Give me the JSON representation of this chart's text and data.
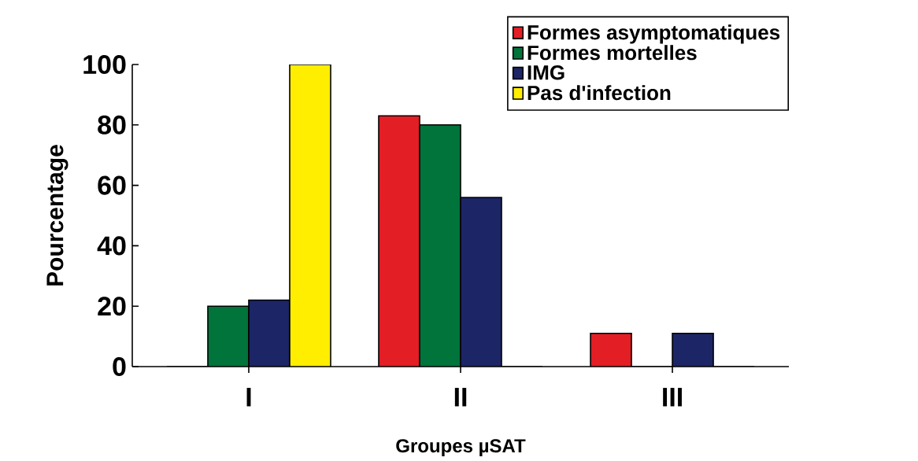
{
  "chart_data": {
    "type": "bar",
    "xlabel": "Groupes µSAT",
    "ylabel": "Pourcentage",
    "categories": [
      "I",
      "II",
      "III"
    ],
    "series": [
      {
        "name": "Formes asymptomatiques",
        "color": "#e31e24",
        "values": [
          0,
          83,
          11
        ]
      },
      {
        "name": "Formes mortelles",
        "color": "#00743a",
        "values": [
          20,
          80,
          0
        ]
      },
      {
        "name": "IMG",
        "color": "#1c2566",
        "values": [
          22,
          56,
          11
        ]
      },
      {
        "name": "Pas d'infection",
        "color": "#ffee00",
        "values": [
          100,
          0,
          0
        ]
      }
    ],
    "ylim": [
      0,
      100
    ],
    "yticks": [
      0,
      20,
      40,
      60,
      80,
      100
    ],
    "grid": false,
    "legend": "top right"
  }
}
